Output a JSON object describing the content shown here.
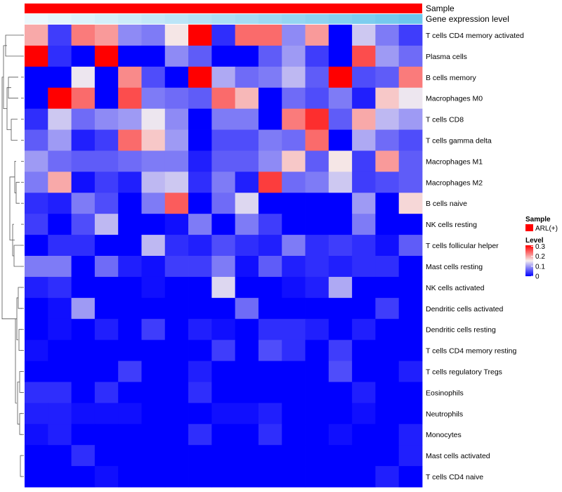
{
  "chart_data": {
    "type": "heatmap",
    "title": "",
    "rows": [
      "T cells CD4 memory activated",
      "Plasma cells",
      "B cells memory",
      "Macrophages M0",
      "T cells CD8",
      "T cells gamma delta",
      "Macrophages M1",
      "Macrophages M2",
      "B cells naive",
      "NK cells resting",
      "T cells follicular helper",
      "Mast cells resting",
      "NK cells activated",
      "Dendritic cells activated",
      "Dendritic cells resting",
      "T cells CD4 memory resting",
      "T cells regulatory  Tregs",
      "Eosinophils",
      "Neutrophils",
      "Monocytes",
      "Mast cells activated",
      "T cells CD4 naive"
    ],
    "n_columns": 17,
    "values": [
      [
        0.2,
        0.04,
        0.23,
        0.21,
        0.09,
        0.08,
        0.16,
        0.31,
        0.03,
        0.24,
        0.24,
        0.09,
        0.21,
        0.0,
        0.13,
        0.08,
        0.04
      ],
      [
        0.31,
        0.03,
        0.0,
        0.31,
        0.0,
        0.0,
        0.09,
        0.06,
        0.0,
        0.0,
        0.06,
        0.1,
        0.04,
        0.0,
        0.26,
        0.1,
        0.07
      ],
      [
        0.0,
        0.0,
        0.15,
        0.0,
        0.22,
        0.05,
        0.0,
        0.31,
        0.11,
        0.07,
        0.08,
        0.12,
        0.06,
        0.31,
        0.05,
        0.06,
        0.23
      ],
      [
        0.0,
        0.31,
        0.24,
        0.0,
        0.26,
        0.08,
        0.07,
        0.06,
        0.24,
        0.19,
        0.0,
        0.07,
        0.05,
        0.08,
        0.02,
        0.18,
        0.15
      ],
      [
        0.03,
        0.13,
        0.07,
        0.09,
        0.1,
        0.15,
        0.09,
        0.0,
        0.08,
        0.08,
        0.0,
        0.23,
        0.28,
        0.06,
        0.2,
        0.12,
        0.1
      ],
      [
        0.06,
        0.1,
        0.02,
        0.04,
        0.24,
        0.18,
        0.1,
        0.0,
        0.05,
        0.05,
        0.08,
        0.07,
        0.24,
        0.0,
        0.11,
        0.07,
        0.05
      ],
      [
        0.1,
        0.07,
        0.06,
        0.06,
        0.07,
        0.08,
        0.08,
        0.02,
        0.06,
        0.06,
        0.09,
        0.18,
        0.06,
        0.16,
        0.04,
        0.21,
        0.06
      ],
      [
        0.08,
        0.2,
        0.01,
        0.04,
        0.02,
        0.12,
        0.13,
        0.03,
        0.08,
        0.02,
        0.27,
        0.07,
        0.08,
        0.13,
        0.04,
        0.05,
        0.06
      ],
      [
        0.03,
        0.02,
        0.08,
        0.05,
        0.0,
        0.08,
        0.25,
        0.0,
        0.07,
        0.14,
        0.0,
        0.0,
        0.0,
        0.0,
        0.1,
        0.0,
        0.17
      ],
      [
        0.04,
        0.0,
        0.05,
        0.12,
        0.0,
        0.0,
        0.01,
        0.08,
        0.0,
        0.08,
        0.04,
        0.0,
        0.0,
        0.0,
        0.08,
        0.0,
        0.0
      ],
      [
        0.0,
        0.03,
        0.03,
        0.0,
        0.0,
        0.12,
        0.03,
        0.02,
        0.05,
        0.03,
        0.02,
        0.08,
        0.03,
        0.04,
        0.03,
        0.01,
        0.06
      ],
      [
        0.08,
        0.08,
        0.0,
        0.07,
        0.02,
        0.01,
        0.04,
        0.04,
        0.08,
        0.01,
        0.06,
        0.02,
        0.03,
        0.02,
        0.03,
        0.03,
        0.0
      ],
      [
        0.02,
        0.03,
        0.0,
        0.0,
        0.0,
        0.01,
        0.0,
        0.0,
        0.14,
        0.0,
        0.0,
        0.01,
        0.02,
        0.11,
        0.0,
        0.0,
        0.0
      ],
      [
        0.0,
        0.01,
        0.1,
        0.0,
        0.0,
        0.0,
        0.0,
        0.0,
        0.0,
        0.07,
        0.0,
        0.0,
        0.0,
        0.0,
        0.0,
        0.04,
        0.0
      ],
      [
        0.0,
        0.01,
        0.0,
        0.02,
        0.0,
        0.04,
        0.0,
        0.02,
        0.01,
        0.0,
        0.03,
        0.03,
        0.02,
        0.0,
        0.02,
        0.0,
        0.0
      ],
      [
        0.01,
        0.0,
        0.0,
        0.0,
        0.0,
        0.0,
        0.0,
        0.0,
        0.04,
        0.0,
        0.05,
        0.03,
        0.0,
        0.04,
        0.0,
        0.0,
        0.0
      ],
      [
        0.0,
        0.0,
        0.0,
        0.0,
        0.04,
        0.0,
        0.0,
        0.02,
        0.0,
        0.0,
        0.0,
        0.0,
        0.0,
        0.05,
        0.0,
        0.0,
        0.02
      ],
      [
        0.03,
        0.03,
        0.0,
        0.03,
        0.0,
        0.0,
        0.0,
        0.03,
        0.0,
        0.0,
        0.0,
        0.0,
        0.0,
        0.0,
        0.02,
        0.0,
        0.0
      ],
      [
        0.02,
        0.02,
        0.01,
        0.01,
        0.01,
        0.0,
        0.0,
        0.0,
        0.01,
        0.01,
        0.02,
        0.0,
        0.0,
        0.0,
        0.01,
        0.0,
        0.0
      ],
      [
        0.01,
        0.02,
        0.0,
        0.0,
        0.0,
        0.0,
        0.0,
        0.03,
        0.0,
        0.0,
        0.03,
        0.0,
        0.0,
        0.01,
        0.0,
        0.0,
        0.02
      ],
      [
        0.0,
        0.0,
        0.03,
        0.0,
        0.0,
        0.0,
        0.0,
        0.0,
        0.0,
        0.0,
        0.0,
        0.0,
        0.0,
        0.0,
        0.0,
        0.0,
        0.02
      ],
      [
        0.0,
        0.0,
        0.0,
        0.01,
        0.0,
        0.0,
        0.0,
        0.0,
        0.0,
        0.0,
        0.0,
        0.0,
        0.0,
        0.0,
        0.0,
        0.02,
        0.0
      ]
    ],
    "color_scale": {
      "min": 0,
      "max": 0.31,
      "stops": [
        {
          "value": 0,
          "color": "#0000ff"
        },
        {
          "value": 0.155,
          "color": "#f5eeee"
        },
        {
          "value": 0.31,
          "color": "#ff0000"
        }
      ]
    },
    "annotations": {
      "sample": {
        "label": "Sample",
        "color": "#ff0000"
      },
      "expression": {
        "label": "Gene expression level",
        "values": [
          0.05,
          0.1,
          0.15,
          0.2,
          0.25,
          0.3,
          0.35,
          0.4,
          0.45,
          0.5,
          0.55,
          0.6,
          0.65,
          0.7,
          0.75,
          0.8,
          0.85
        ],
        "low_color": "#f4fbfe",
        "high_color": "#55bdea"
      }
    },
    "legend": {
      "sample_title": "Sample",
      "sample_item": "ARL(+)",
      "sample_color": "#ff0000",
      "level_title": "Level",
      "ticks": [
        "0.3",
        "0.2",
        "0.1",
        "0"
      ],
      "tick_values": [
        0.3,
        0.2,
        0.1,
        0
      ],
      "position": "right"
    },
    "dendrogram": {
      "side": "left",
      "clusters": "hierarchical"
    }
  }
}
